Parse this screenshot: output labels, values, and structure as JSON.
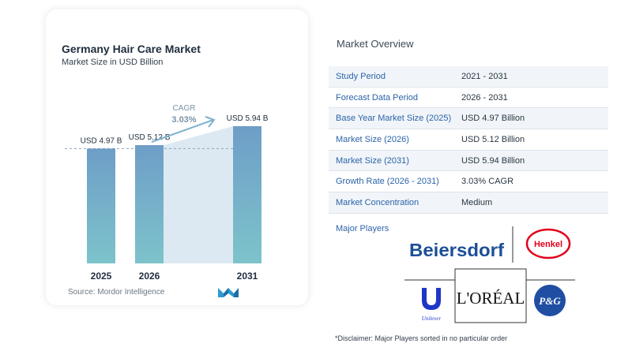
{
  "chart_card": {
    "title": "Germany Hair Care Market",
    "subtitle": "Market Size in USD Billion",
    "source": "Source:  Mordor Intelligence",
    "cagr_label": "CAGR",
    "cagr_value": "3.03%"
  },
  "chart_data": {
    "type": "bar",
    "title": "Germany Hair Care Market",
    "subtitle": "Market Size in USD Billion",
    "categories": [
      "2025",
      "2026",
      "2031"
    ],
    "values": [
      4.97,
      5.12,
      5.94
    ],
    "data_labels": [
      "USD 4.97 B",
      "USD 5.12 B",
      "USD 5.94 B"
    ],
    "ylim": [
      0,
      5.94
    ],
    "grid": false,
    "annotation": {
      "label": "CAGR",
      "value": "3.03%"
    }
  },
  "overview": {
    "title": "Market Overview",
    "rows": [
      {
        "label": "Study Period",
        "value": "2021 - 2031"
      },
      {
        "label": "Forecast Data Period",
        "value": "2026 - 2031"
      },
      {
        "label": "Base Year Market Size (2025)",
        "value": "USD 4.97 Billion"
      },
      {
        "label": "Market Size (2026)",
        "value": "USD 5.12 Billion"
      },
      {
        "label": "Market Size (2031)",
        "value": "USD 5.94 Billion"
      },
      {
        "label": "Growth Rate (2026 - 2031)",
        "value": "3.03% CAGR"
      },
      {
        "label": "Market Concentration",
        "value": "Medium"
      }
    ]
  },
  "players": {
    "title": "Major Players",
    "logos": [
      "Beiersdorf",
      "Henkel",
      "Unilever",
      "L'ORÉAL",
      "P&G"
    ]
  },
  "disclaimer": "*Disclaimer: Major Players sorted in no particular order",
  "colors": {
    "bar_top": "#6e9ec7",
    "bar_bottom": "#7dc3cb",
    "area_fill": "#dde9f2",
    "label_blue": "#2b63a8",
    "cagr_text": "#7a93a8"
  }
}
